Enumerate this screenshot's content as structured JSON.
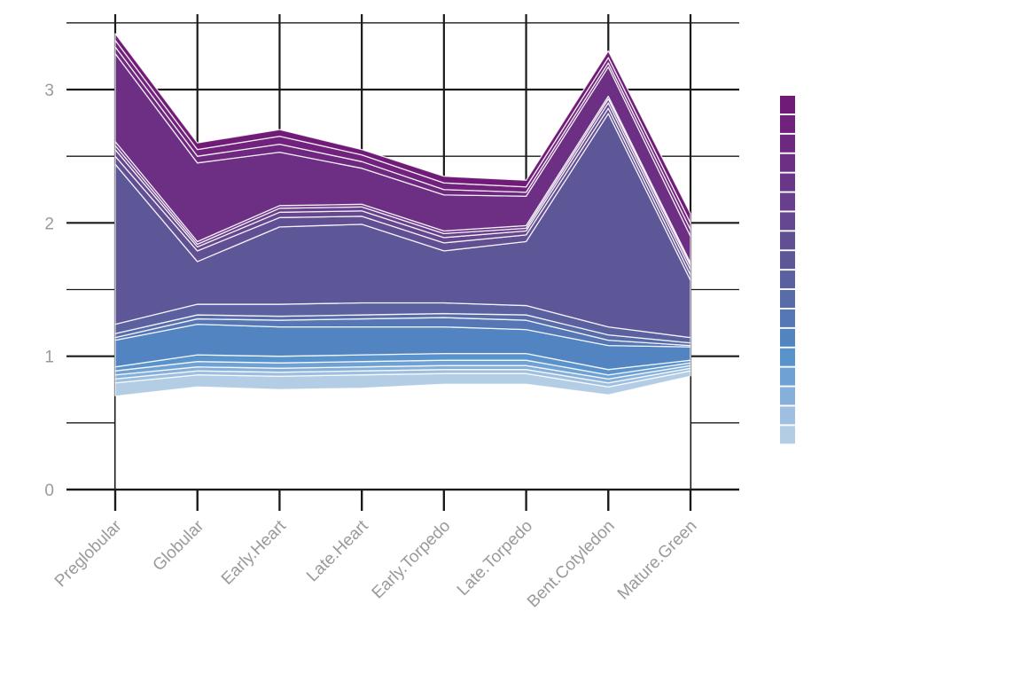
{
  "chart_data": {
    "type": "area",
    "stacked": true,
    "categories": [
      "Preglobular",
      "Globular",
      "Early.Heart",
      "Late.Heart",
      "Early.Torpedo",
      "Late.Torpedo",
      "Bent.Cotyledon",
      "Mature.Green"
    ],
    "ylim": [
      0,
      3.5
    ],
    "yticks": [
      0,
      1,
      2,
      3
    ],
    "grid": true,
    "legend": "right",
    "baseline": [
      0.7,
      0.77,
      0.75,
      0.76,
      0.79,
      0.79,
      0.71,
      0.85
    ],
    "series": [
      {
        "color": "#B3CDE5",
        "values": [
          0.1,
          0.09,
          0.1,
          0.1,
          0.08,
          0.08,
          0.06,
          0.04
        ]
      },
      {
        "color": "#9EBFE0",
        "values": [
          0.03,
          0.03,
          0.03,
          0.03,
          0.03,
          0.03,
          0.03,
          0.02
        ]
      },
      {
        "color": "#86B0DA",
        "values": [
          0.03,
          0.03,
          0.03,
          0.03,
          0.03,
          0.03,
          0.03,
          0.02
        ]
      },
      {
        "color": "#6FA1D4",
        "values": [
          0.03,
          0.04,
          0.04,
          0.04,
          0.04,
          0.04,
          0.03,
          0.02
        ]
      },
      {
        "color": "#5A93CB",
        "values": [
          0.03,
          0.05,
          0.05,
          0.05,
          0.05,
          0.05,
          0.04,
          0.02
        ]
      },
      {
        "color": "#5284C1",
        "values": [
          0.2,
          0.23,
          0.22,
          0.21,
          0.2,
          0.18,
          0.18,
          0.1
        ]
      },
      {
        "color": "#5577B5",
        "values": [
          0.02,
          0.04,
          0.05,
          0.06,
          0.07,
          0.07,
          0.04,
          0.01
        ]
      },
      {
        "color": "#586CAA",
        "values": [
          0.03,
          0.03,
          0.03,
          0.03,
          0.03,
          0.04,
          0.04,
          0.02
        ]
      },
      {
        "color": "#5B619F",
        "values": [
          0.07,
          0.08,
          0.09,
          0.09,
          0.08,
          0.07,
          0.06,
          0.04
        ]
      },
      {
        "color": "#5D5798",
        "values": [
          1.2,
          0.32,
          0.58,
          0.59,
          0.39,
          0.48,
          1.6,
          0.43
        ]
      },
      {
        "color": "#614F93",
        "values": [
          0.06,
          0.08,
          0.07,
          0.06,
          0.06,
          0.05,
          0.04,
          0.04
        ]
      },
      {
        "color": "#64478F",
        "values": [
          0.05,
          0.03,
          0.04,
          0.04,
          0.04,
          0.03,
          0.04,
          0.04
        ]
      },
      {
        "color": "#673F8C",
        "values": [
          0.03,
          0.02,
          0.03,
          0.03,
          0.03,
          0.02,
          0.03,
          0.03
        ]
      },
      {
        "color": "#6A3788",
        "values": [
          0.03,
          0.02,
          0.02,
          0.02,
          0.02,
          0.02,
          0.02,
          0.02
        ]
      },
      {
        "color": "#6C2F84",
        "values": [
          0.66,
          0.59,
          0.4,
          0.27,
          0.27,
          0.22,
          0.22,
          0.2
        ]
      },
      {
        "color": "#6E2880",
        "values": [
          0.05,
          0.05,
          0.06,
          0.05,
          0.04,
          0.03,
          0.03,
          0.05
        ]
      },
      {
        "color": "#70227C",
        "values": [
          0.05,
          0.05,
          0.06,
          0.05,
          0.05,
          0.04,
          0.04,
          0.05
        ]
      },
      {
        "color": "#701B78",
        "values": [
          0.05,
          0.05,
          0.05,
          0.04,
          0.05,
          0.05,
          0.05,
          0.07
        ]
      }
    ]
  }
}
